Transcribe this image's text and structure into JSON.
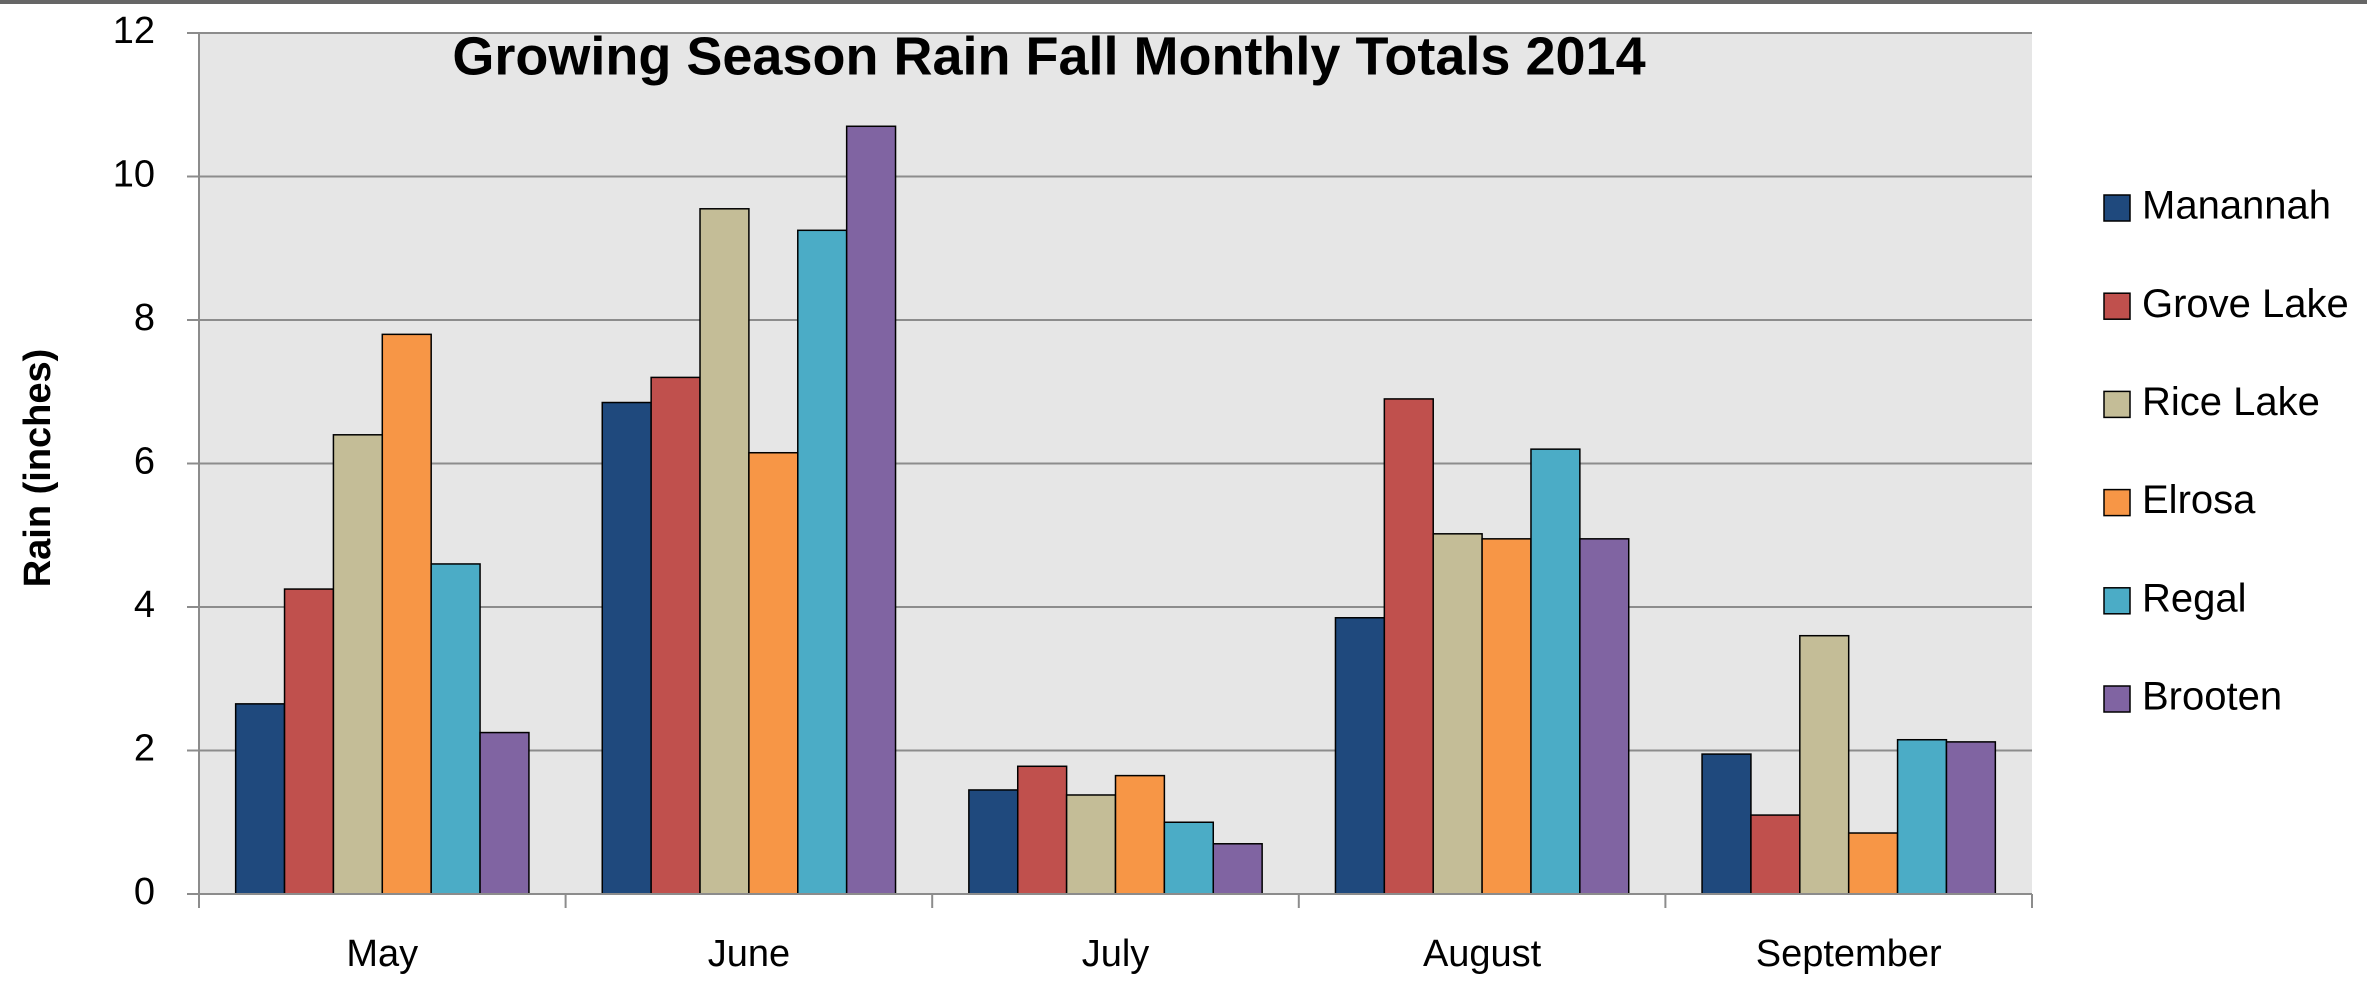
{
  "chart_data": {
    "type": "bar",
    "title": "Growing Season Rain Fall Monthly Totals 2014",
    "y_label": "Rain (inches)",
    "categories": [
      "May",
      "June",
      "July",
      "August",
      "September"
    ],
    "series": [
      {
        "name": "Manannah",
        "color": "#1f497d",
        "values": [
          2.65,
          6.85,
          1.45,
          3.85,
          1.95
        ]
      },
      {
        "name": "Grove Lake",
        "color": "#c0504d",
        "values": [
          4.25,
          7.2,
          1.78,
          6.9,
          1.1
        ]
      },
      {
        "name": "Rice Lake",
        "color": "#c4bd97",
        "values": [
          6.4,
          9.55,
          1.38,
          5.02,
          3.6
        ]
      },
      {
        "name": "Elrosa",
        "color": "#f79646",
        "values": [
          7.8,
          6.15,
          1.65,
          4.95,
          0.85
        ]
      },
      {
        "name": "Regal",
        "color": "#4bacc6",
        "values": [
          4.6,
          9.25,
          1.0,
          6.2,
          2.15
        ]
      },
      {
        "name": "Brooten",
        "color": "#8064a2",
        "values": [
          2.25,
          10.7,
          0.7,
          4.95,
          2.12
        ]
      }
    ],
    "ylim": [
      0,
      12
    ],
    "yticks": [
      0,
      2,
      4,
      6,
      8,
      10,
      12
    ],
    "grid": true,
    "legend": "right"
  }
}
